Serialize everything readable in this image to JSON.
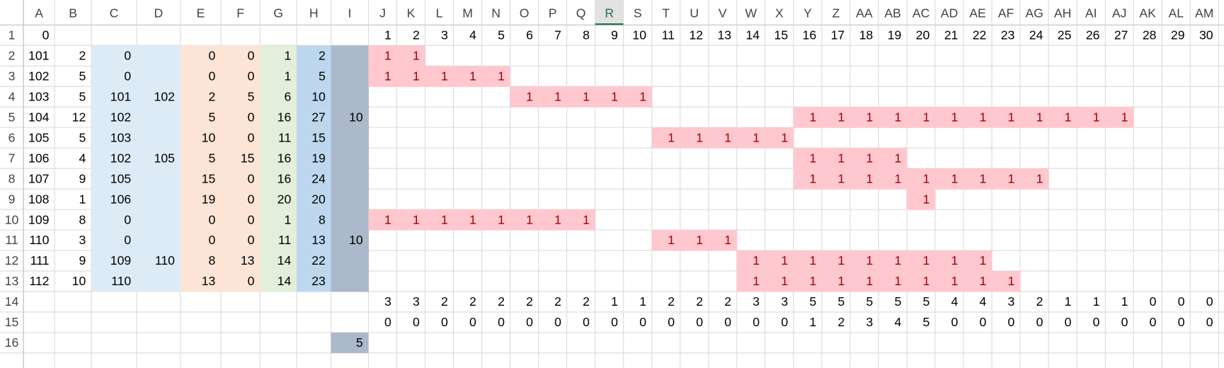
{
  "column_headers": [
    "A",
    "B",
    "C",
    "D",
    "E",
    "F",
    "G",
    "H",
    "I",
    "J",
    "K",
    "L",
    "M",
    "N",
    "O",
    "P",
    "Q",
    "R",
    "S",
    "T",
    "U",
    "V",
    "W",
    "X",
    "Y",
    "Z",
    "AA",
    "AB",
    "AC",
    "AD",
    "AE",
    "AF",
    "AG",
    "AH",
    "AI",
    "AJ",
    "AK",
    "AL",
    "AM"
  ],
  "selected_column": "R",
  "row_headers": [
    1,
    2,
    3,
    4,
    5,
    6,
    7,
    8,
    9,
    10,
    11,
    12,
    13,
    14,
    15,
    16
  ],
  "rows": [
    {
      "cells": {
        "A": 0,
        "J": 1,
        "K": 2,
        "L": 3,
        "M": 4,
        "N": 5,
        "O": 6,
        "P": 7,
        "Q": 8,
        "R": 9,
        "S": 10,
        "T": 11,
        "U": 12,
        "V": 13,
        "W": 14,
        "X": 15,
        "Y": 16,
        "Z": 17,
        "AA": 18,
        "AB": 19,
        "AC": 20,
        "AD": 21,
        "AE": 22,
        "AF": 23,
        "AG": 24,
        "AH": 25,
        "AI": 26,
        "AJ": 27,
        "AK": 28,
        "AL": 29,
        "AM": 30
      }
    },
    {
      "cells": {
        "A": 101,
        "B": 2,
        "C": 0,
        "E": 0,
        "F": 0,
        "G": 1,
        "H": 2,
        "J": 1,
        "K": 1
      }
    },
    {
      "cells": {
        "A": 102,
        "B": 5,
        "C": 0,
        "E": 0,
        "F": 0,
        "G": 1,
        "H": 5,
        "J": 1,
        "K": 1,
        "L": 1,
        "M": 1,
        "N": 1
      }
    },
    {
      "cells": {
        "A": 103,
        "B": 5,
        "C": 101,
        "D": 102,
        "E": 2,
        "F": 5,
        "G": 6,
        "H": 10,
        "O": 1,
        "P": 1,
        "Q": 1,
        "R": 1,
        "S": 1
      }
    },
    {
      "cells": {
        "A": 104,
        "B": 12,
        "C": 102,
        "E": 5,
        "F": 0,
        "G": 16,
        "H": 27,
        "I": 10,
        "Y": 1,
        "Z": 1,
        "AA": 1,
        "AB": 1,
        "AC": 1,
        "AD": 1,
        "AE": 1,
        "AF": 1,
        "AG": 1,
        "AH": 1,
        "AI": 1,
        "AJ": 1
      }
    },
    {
      "cells": {
        "A": 105,
        "B": 5,
        "C": 103,
        "E": 10,
        "F": 0,
        "G": 11,
        "H": 15,
        "T": 1,
        "U": 1,
        "V": 1,
        "W": 1,
        "X": 1
      }
    },
    {
      "cells": {
        "A": 106,
        "B": 4,
        "C": 102,
        "D": 105,
        "E": 5,
        "F": 15,
        "G": 16,
        "H": 19,
        "Y": 1,
        "Z": 1,
        "AA": 1,
        "AB": 1
      }
    },
    {
      "cells": {
        "A": 107,
        "B": 9,
        "C": 105,
        "E": 15,
        "F": 0,
        "G": 16,
        "H": 24,
        "Y": 1,
        "Z": 1,
        "AA": 1,
        "AB": 1,
        "AC": 1,
        "AD": 1,
        "AE": 1,
        "AF": 1,
        "AG": 1
      }
    },
    {
      "cells": {
        "A": 108,
        "B": 1,
        "C": 106,
        "E": 19,
        "F": 0,
        "G": 20,
        "H": 20,
        "AC": 1
      }
    },
    {
      "cells": {
        "A": 109,
        "B": 8,
        "C": 0,
        "E": 0,
        "F": 0,
        "G": 1,
        "H": 8,
        "J": 1,
        "K": 1,
        "L": 1,
        "M": 1,
        "N": 1,
        "O": 1,
        "P": 1,
        "Q": 1
      }
    },
    {
      "cells": {
        "A": 110,
        "B": 3,
        "C": 0,
        "E": 0,
        "F": 0,
        "G": 11,
        "H": 13,
        "I": 10,
        "T": 1,
        "U": 1,
        "V": 1
      }
    },
    {
      "cells": {
        "A": 111,
        "B": 9,
        "C": 109,
        "D": 110,
        "E": 8,
        "F": 13,
        "G": 14,
        "H": 22,
        "W": 1,
        "X": 1,
        "Y": 1,
        "Z": 1,
        "AA": 1,
        "AB": 1,
        "AC": 1,
        "AD": 1,
        "AE": 1
      }
    },
    {
      "cells": {
        "A": 112,
        "B": 10,
        "C": 110,
        "E": 13,
        "F": 0,
        "G": 14,
        "H": 23,
        "W": 1,
        "X": 1,
        "Y": 1,
        "Z": 1,
        "AA": 1,
        "AB": 1,
        "AC": 1,
        "AD": 1,
        "AE": 1,
        "AF": 1
      }
    },
    {
      "cells": {
        "J": 3,
        "K": 3,
        "L": 2,
        "M": 2,
        "N": 2,
        "O": 2,
        "P": 2,
        "Q": 2,
        "R": 1,
        "S": 1,
        "T": 2,
        "U": 2,
        "V": 2,
        "W": 3,
        "X": 3,
        "Y": 5,
        "Z": 5,
        "AA": 5,
        "AB": 5,
        "AC": 5,
        "AD": 4,
        "AE": 4,
        "AF": 3,
        "AG": 2,
        "AH": 1,
        "AI": 1,
        "AJ": 1,
        "AK": 0,
        "AL": 0,
        "AM": 0
      }
    },
    {
      "cells": {
        "J": 0,
        "K": 0,
        "L": 0,
        "M": 0,
        "N": 0,
        "O": 0,
        "P": 0,
        "Q": 0,
        "R": 0,
        "S": 0,
        "T": 0,
        "U": 0,
        "V": 0,
        "W": 0,
        "X": 0,
        "Y": 1,
        "Z": 2,
        "AA": 3,
        "AB": 4,
        "AC": 5,
        "AD": 0,
        "AE": 0,
        "AF": 0,
        "AG": 0,
        "AH": 0,
        "AI": 0,
        "AJ": 0,
        "AK": 0,
        "AL": 0,
        "AM": 0
      }
    },
    {
      "cells": {
        "I": 5
      }
    }
  ]
}
